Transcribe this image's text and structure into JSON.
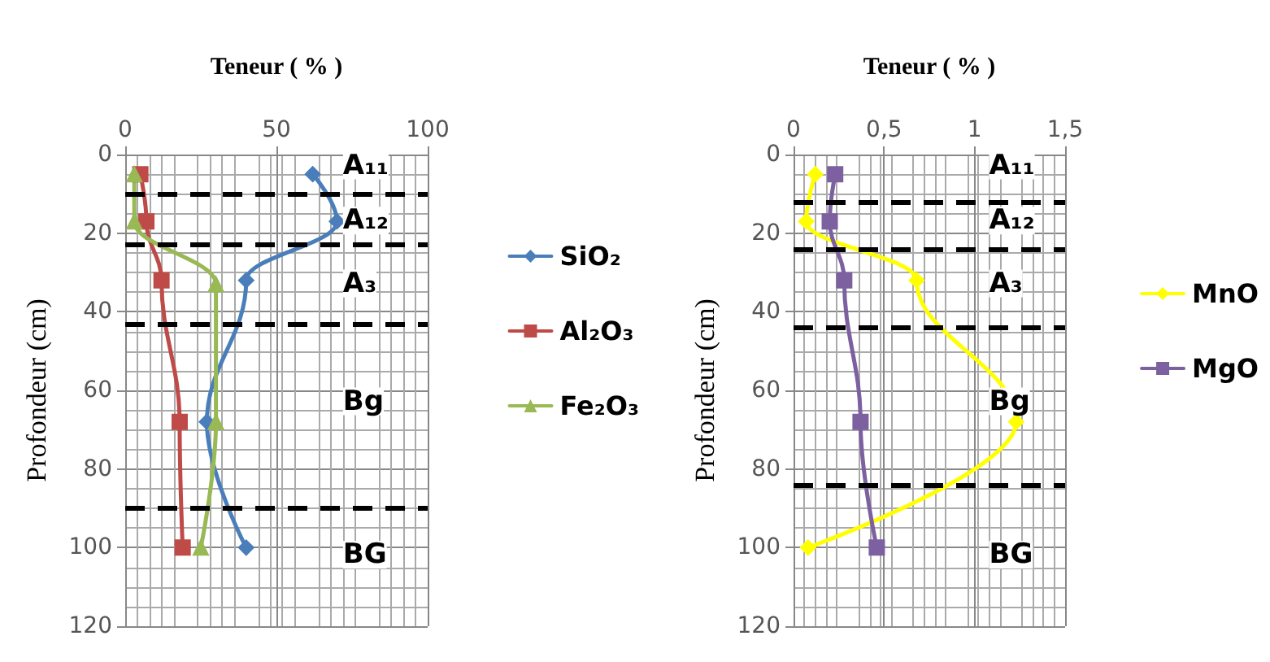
{
  "chart_data": [
    {
      "type": "line",
      "xlabel": "Teneur ( % )",
      "ylabel": "Profondeur (cm)",
      "xlim": [
        0,
        100
      ],
      "xticks": [
        0,
        50,
        100
      ],
      "ylim": [
        120,
        0
      ],
      "yticks": [
        0,
        20,
        40,
        60,
        80,
        100,
        120
      ],
      "grid": true,
      "legend": "right",
      "series": [
        {
          "name": "SiO₂",
          "color": "#4a7ebb",
          "marker": "diamond",
          "x": [
            62,
            70,
            40,
            27,
            40
          ],
          "values": [
            5,
            17,
            32,
            68,
            100
          ]
        },
        {
          "name": "Al₂O₃",
          "color": "#be4b48",
          "marker": "square",
          "x": [
            5,
            7,
            12,
            18,
            19
          ],
          "values": [
            5,
            17,
            32,
            68,
            100
          ]
        },
        {
          "name": "Fe₂O₃",
          "color": "#98b954",
          "marker": "triangle",
          "x": [
            3,
            3,
            30,
            30,
            25
          ],
          "values": [
            5,
            17,
            33,
            68,
            100
          ]
        }
      ],
      "ref_lines": [
        {
          "axis": "y",
          "value": 10,
          "color": "#000000",
          "line_style": "dashed"
        },
        {
          "axis": "y",
          "value": 23,
          "color": "#000000",
          "line_style": "dashed"
        },
        {
          "axis": "y",
          "value": 43,
          "color": "#000000",
          "line_style": "dashed"
        },
        {
          "axis": "y",
          "value": 90,
          "color": "#000000",
          "line_style": "dashed"
        }
      ],
      "annotations": [
        {
          "text": "A₁₁",
          "y": 3
        },
        {
          "text": "A₁₂",
          "y": 17
        },
        {
          "text": "A₃",
          "y": 33
        },
        {
          "text": "Bg",
          "y": 63
        },
        {
          "text": "BG",
          "y": 102
        }
      ]
    },
    {
      "type": "line",
      "xlabel": "Teneur ( % )",
      "ylabel": "Profondeur (cm)",
      "xlim": [
        0,
        1.5
      ],
      "xticks": [
        0,
        {
          "value": 0.5,
          "label": "0,5"
        },
        1,
        {
          "value": 1.5,
          "label": "1,5"
        }
      ],
      "ylim": [
        120,
        0
      ],
      "yticks": [
        0,
        20,
        40,
        60,
        80,
        100,
        120
      ],
      "grid": true,
      "legend": "right",
      "series": [
        {
          "name": "MnO",
          "color": "#ffff00",
          "marker": "diamond",
          "x": [
            0.12,
            0.07,
            0.68,
            1.23,
            0.08
          ],
          "values": [
            5,
            17,
            32,
            68,
            100
          ]
        },
        {
          "name": "MgO",
          "color": "#7d60a0",
          "marker": "square",
          "x": [
            0.23,
            0.2,
            0.28,
            0.37,
            0.46
          ],
          "values": [
            5,
            17,
            32,
            68,
            100
          ]
        }
      ],
      "ref_lines": [
        {
          "axis": "y",
          "value": 12,
          "color": "#000000",
          "line_style": "dashed"
        },
        {
          "axis": "y",
          "value": 24,
          "color": "#000000",
          "line_style": "dashed"
        },
        {
          "axis": "y",
          "value": 44,
          "color": "#000000",
          "line_style": "dashed"
        },
        {
          "axis": "y",
          "value": 84,
          "color": "#000000",
          "line_style": "dashed"
        }
      ],
      "annotations": [
        {
          "text": "A₁₁",
          "y": 3
        },
        {
          "text": "A₁₂",
          "y": 17
        },
        {
          "text": "A₃",
          "y": 33
        },
        {
          "text": "Bg",
          "y": 63
        },
        {
          "text": "BG",
          "y": 102
        }
      ]
    }
  ]
}
